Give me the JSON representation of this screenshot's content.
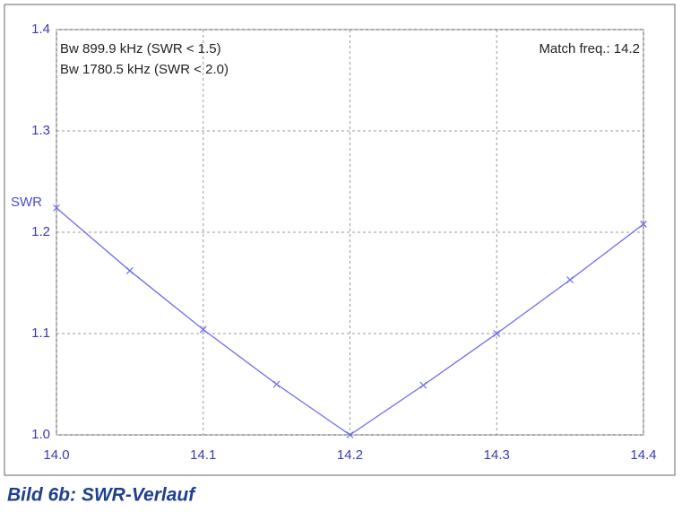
{
  "chart_data": {
    "type": "line",
    "ylabel": "SWR",
    "annotations": [
      "Bw 899.9 kHz (SWR < 1.5)",
      "Bw 1780.5 kHz (SWR < 2.0)",
      "Match freq.: 14.2"
    ],
    "caption": "Bild 6b:  SWR-Verlauf",
    "x": [
      14.0,
      14.05,
      14.1,
      14.15,
      14.2,
      14.25,
      14.3,
      14.35,
      14.4
    ],
    "series": [
      {
        "color": "#6b6bf2",
        "values": [
          1.224,
          1.162,
          1.104,
          1.05,
          1.0,
          1.049,
          1.1,
          1.153,
          1.208
        ]
      }
    ],
    "xlim": [
      14.0,
      14.4
    ],
    "ylim": [
      1.0,
      1.4
    ],
    "xticks": [
      {
        "value": 14.0,
        "label": "14.0"
      },
      14.1,
      14.2,
      14.3,
      14.4
    ],
    "yticks": [
      {
        "value": 1.0,
        "label": "1.0"
      },
      1.1,
      1.2,
      1.3,
      1.4
    ],
    "grid": true
  }
}
